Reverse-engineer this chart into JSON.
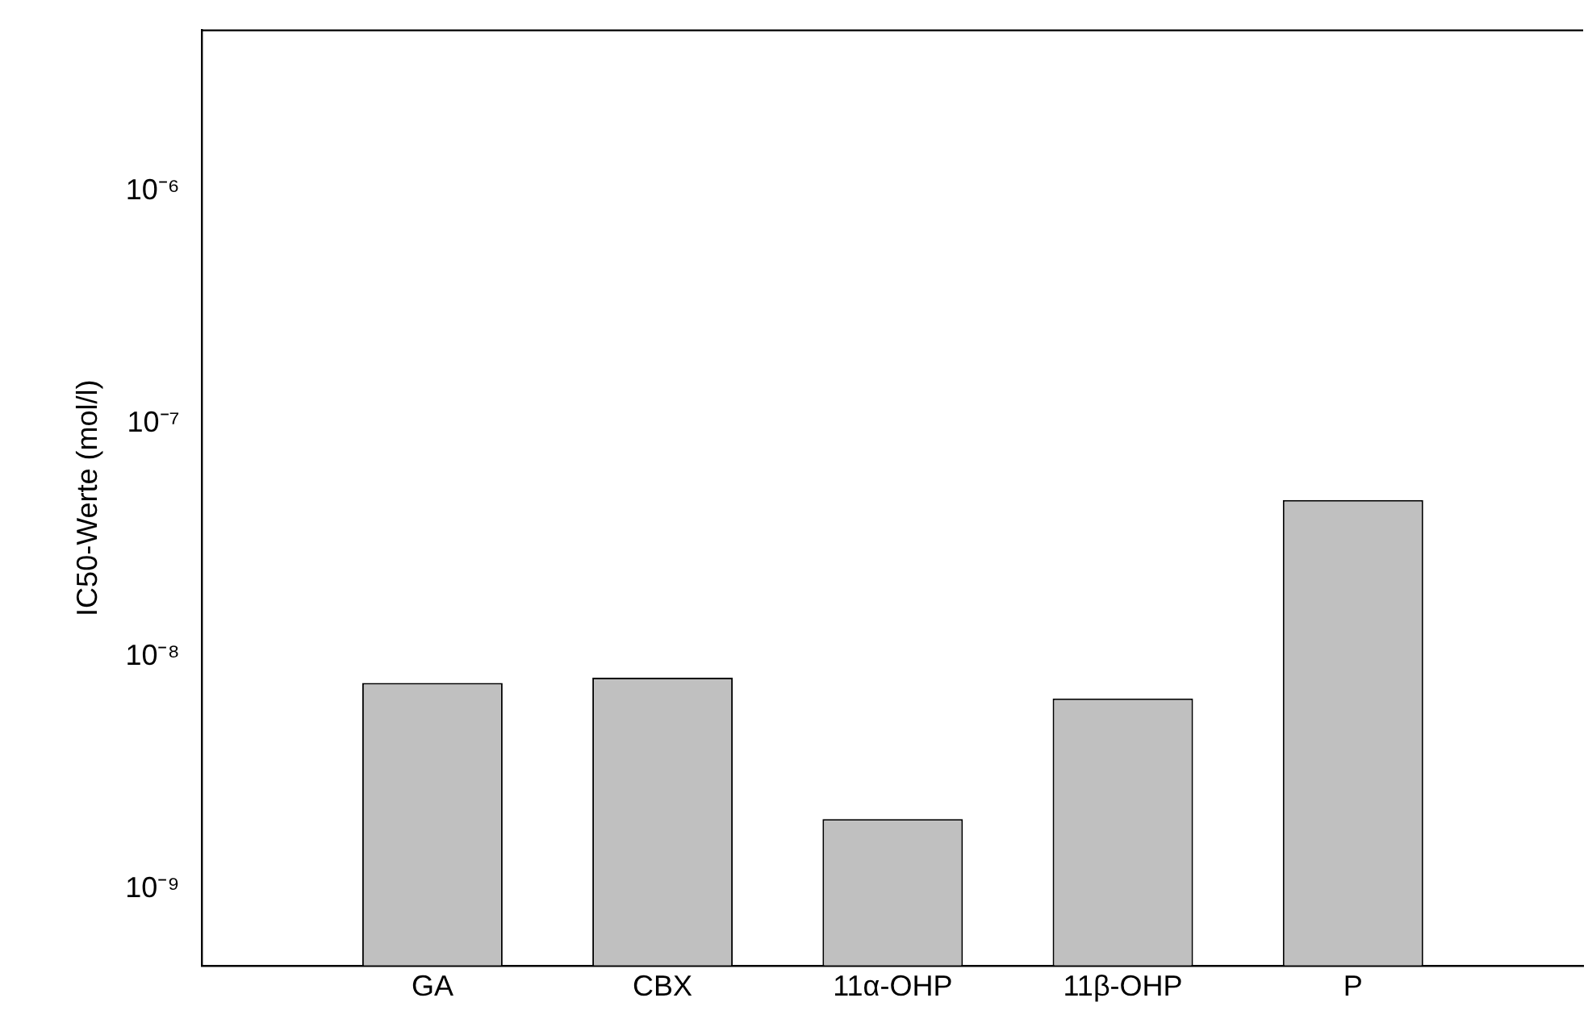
{
  "chart_data": {
    "type": "bar",
    "ylabel": "IC50-Werte (mol/l)",
    "categories": [
      null,
      "GA",
      "CBX",
      "11α-OHP",
      "11β-OHP",
      "P",
      null
    ],
    "values": [
      null,
      7.7e-09,
      8.1e-09,
      2e-09,
      6.6e-09,
      4.7e-08,
      null
    ],
    "color": "#c0c0c0",
    "log": "y",
    "ylim": [
      4.7e-10,
      4.9e-06
    ],
    "yticks": [
      {
        "value": 1e-09,
        "label": "10⁻⁹"
      },
      {
        "value": 1e-08,
        "label": "10⁻⁸"
      },
      {
        "value": 1e-07,
        "label": "10⁻⁷"
      },
      {
        "value": 1e-06,
        "label": "10⁻⁶"
      }
    ],
    "grid": false,
    "legend": false
  }
}
